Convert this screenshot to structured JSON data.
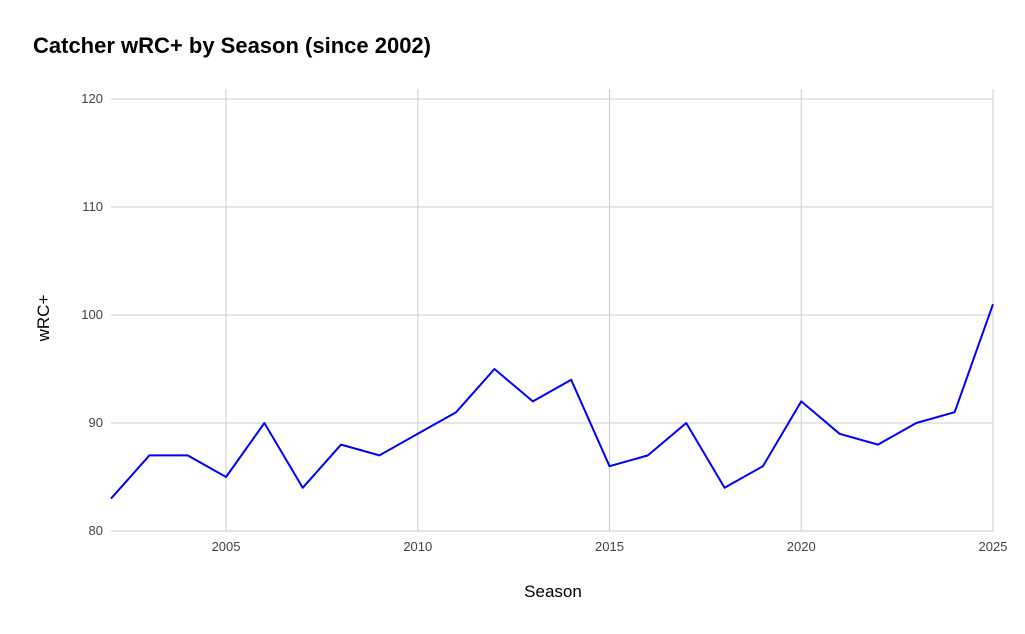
{
  "chart_data": {
    "type": "line",
    "title": "Catcher wRC+ by Season (since 2002)",
    "xlabel": "Season",
    "ylabel": "wRC+",
    "xlim": [
      2002,
      2025
    ],
    "ylim": [
      80,
      120
    ],
    "x_ticks": [
      "2005",
      "2010",
      "2015",
      "2020",
      "2025"
    ],
    "y_ticks": [
      "80",
      "90",
      "100",
      "110",
      "120"
    ],
    "grid": true,
    "legend": "none",
    "line_color": "#0000ff",
    "x": [
      2002,
      2003,
      2004,
      2005,
      2006,
      2007,
      2008,
      2009,
      2010,
      2011,
      2012,
      2013,
      2014,
      2015,
      2016,
      2017,
      2018,
      2019,
      2020,
      2021,
      2022,
      2023,
      2024,
      2025
    ],
    "series": [
      {
        "values": [
          83,
          87,
          87,
          85,
          90,
          84,
          88,
          87,
          89,
          91,
          95,
          92,
          94,
          86,
          87,
          90,
          84,
          86,
          92,
          89,
          88,
          90,
          91,
          101
        ]
      }
    ]
  }
}
